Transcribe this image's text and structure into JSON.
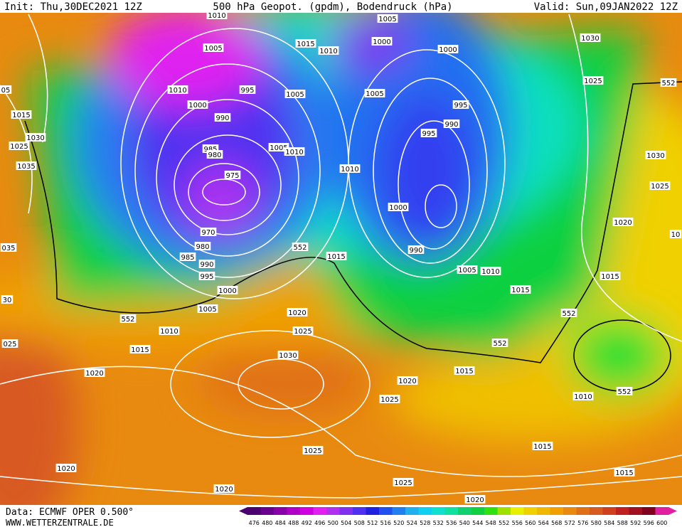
{
  "header": {
    "init": "Init: Thu,30DEC2021 12Z",
    "title": "500 hPa Geopot. (gpdm), Bodendruck (hPa)",
    "valid": "Valid: Sun,09JAN2022 12Z"
  },
  "footer": {
    "source": "Data: ECMWF OPER 0.500°",
    "site": "WWW.WETTERZENTRALE.DE"
  },
  "isobar_labels": [
    "1010",
    "1005",
    "1015",
    "1010",
    "1005",
    "1000",
    "1000",
    "1030",
    "1025",
    "552",
    "1010",
    "1000",
    "995",
    "1005",
    "1005",
    "995",
    "990",
    "995",
    "990",
    "1015",
    "1030",
    "1025",
    "1035",
    "985",
    "980",
    "1005",
    "1010",
    "975",
    "1010",
    "1030",
    "1025",
    "1000",
    "970",
    "1020",
    "980",
    "552",
    "1015",
    "990",
    "985",
    "990",
    "1005",
    "1010",
    "995",
    "1015",
    "1000",
    "1015",
    "1005",
    "552",
    "1020",
    "552",
    "1010",
    "1025",
    "1015",
    "552",
    "1030",
    "1015",
    "1020",
    "1020",
    "552",
    "1010",
    "1025",
    "1025",
    "1015",
    "1020",
    "1015",
    "1025",
    "1020",
    "1020",
    "05",
    "035",
    "30",
    "025",
    "10"
  ],
  "colorbar": {
    "labels": [
      476,
      480,
      484,
      488,
      492,
      496,
      500,
      504,
      508,
      512,
      516,
      520,
      524,
      528,
      532,
      536,
      540,
      544,
      548,
      552,
      556,
      560,
      564,
      568,
      572,
      576,
      580,
      584,
      588,
      592,
      596,
      600
    ],
    "colors": [
      "#4b0070",
      "#6a0090",
      "#8a00a8",
      "#b000c8",
      "#d000e0",
      "#e020f0",
      "#b030f0",
      "#8030f0",
      "#5030f0",
      "#2020e0",
      "#2050f0",
      "#2080f0",
      "#20b0f0",
      "#10d0f0",
      "#10e0d0",
      "#10e0a0",
      "#10d070",
      "#10d040",
      "#30e010",
      "#a0e000",
      "#e8f000",
      "#f0d000",
      "#f0b800",
      "#f0a000",
      "#e88a10",
      "#e07018",
      "#d85a20",
      "#d04020",
      "#c02020",
      "#a01020",
      "#800020",
      "#e020a0"
    ]
  }
}
